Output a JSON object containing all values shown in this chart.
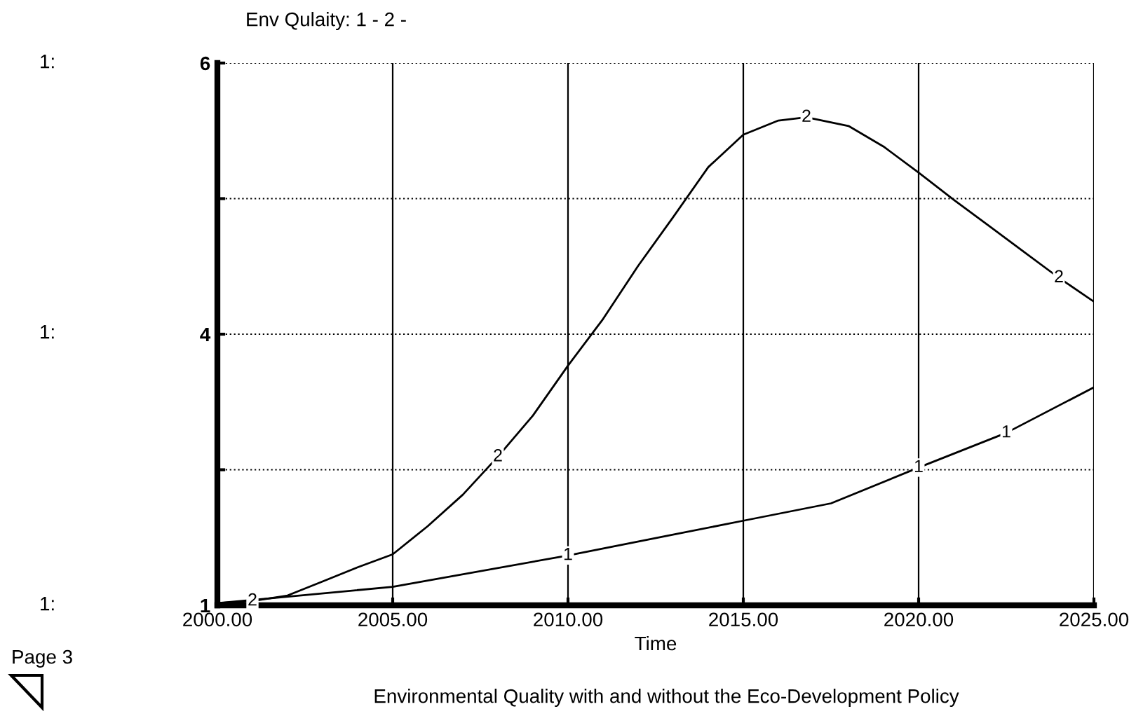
{
  "chart_data": {
    "type": "line",
    "title": "Env Qulaity: 1 - 2 -",
    "subtitle": "Environmental Quality with and without the Eco-Development Policy",
    "xlabel": "Time",
    "annotations": [
      "1:",
      "1:",
      "1:",
      "Page 3"
    ],
    "xlim": [
      2000,
      2025
    ],
    "xticks": [
      {
        "value": 2000,
        "label": "2000.00"
      },
      {
        "value": 2005,
        "label": "2005.00"
      },
      {
        "value": 2010,
        "label": "2010.00"
      },
      {
        "value": 2015,
        "label": "2015.00"
      },
      {
        "value": 2020,
        "label": "2020.00"
      },
      {
        "value": 2025,
        "label": "2025.00"
      }
    ],
    "ylim": [
      1,
      6
    ],
    "yticks": [
      1,
      {
        "value": 2.25,
        "label": null
      },
      {
        "value": 3.5,
        "label": "4"
      },
      {
        "value": 4.75,
        "label": null
      },
      6
    ],
    "grid": true,
    "legend": false,
    "marker": "none",
    "line_style": "solid",
    "series": [
      {
        "name": "1",
        "color": "#000000",
        "x": [
          2000,
          2001,
          2005,
          2010,
          2015,
          2017.5,
          2020,
          2022.5,
          2025
        ],
        "values": [
          1.02,
          1.05,
          1.17,
          1.46,
          1.78,
          1.94,
          2.27,
          2.59,
          3.01
        ]
      },
      {
        "name": "2",
        "color": "#000000",
        "x": [
          2000,
          2001,
          2002,
          2003,
          2004,
          2005,
          2006,
          2007,
          2008,
          2009,
          2010,
          2011,
          2012,
          2013,
          2014,
          2015,
          2016,
          2016.8,
          2018,
          2019,
          2020,
          2021,
          2022,
          2023,
          2024,
          2025
        ],
        "values": [
          1.02,
          1.04,
          1.09,
          1.22,
          1.35,
          1.47,
          1.73,
          2.02,
          2.37,
          2.75,
          3.21,
          3.64,
          4.13,
          4.58,
          5.04,
          5.34,
          5.47,
          5.5,
          5.42,
          5.23,
          4.99,
          4.74,
          4.5,
          4.26,
          4.02,
          3.8
        ]
      }
    ]
  }
}
